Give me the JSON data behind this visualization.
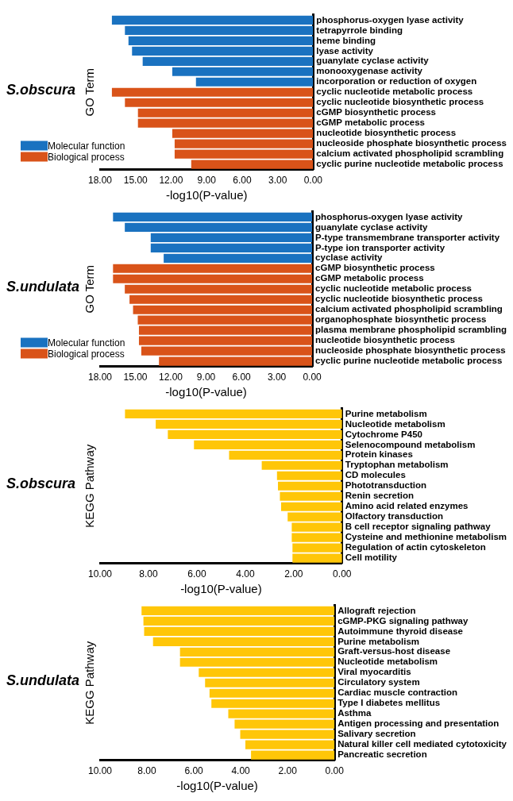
{
  "chart_data": [
    {
      "type": "bar",
      "orientation": "horizontal",
      "title": "S.obscura",
      "xlabel": "-log10(P-value)",
      "ylabel": "GO Term",
      "legend": "bottom left",
      "grid": false,
      "categories": [
        "phosphorus-oxygen lyase activity",
        "tetrapyrrole binding",
        "heme binding",
        "lyase activity",
        "guanylate cyclase activity",
        "monooxygenase activity",
        "incorporation or reduction of oxygen",
        "cyclic nucleotide metabolic process",
        "cyclic nucleotide biosynthetic process",
        "cGMP biosynthetic process",
        "cGMP metabolic process",
        "nucleotide biosynthetic process",
        "nucleoside phosphate biosynthetic process",
        "calcium activated phospholipid scrambling",
        "cyclic purine nucleotide metabolic process"
      ],
      "xlim": [
        18,
        0
      ],
      "xticks": [
        {
          "value": 18,
          "label": "18.00"
        },
        {
          "value": 15,
          "label": "15.00"
        },
        {
          "value": 12,
          "label": "12.00"
        },
        {
          "value": 9,
          "label": "9.00"
        },
        {
          "value": 6,
          "label": "6.00"
        },
        {
          "value": 3,
          "label": "3.00"
        },
        {
          "value": 0,
          "label": "0.00"
        }
      ],
      "series": [
        {
          "name": "Molecular function",
          "color": "#1a72c0",
          "values": [
            17.0,
            15.9,
            15.6,
            15.3,
            14.4,
            11.9,
            9.9,
            null,
            null,
            null,
            null,
            null,
            null,
            null,
            null
          ]
        },
        {
          "name": "Biological process",
          "color": "#d95319",
          "values": [
            null,
            null,
            null,
            null,
            null,
            null,
            null,
            17.0,
            15.9,
            14.8,
            14.8,
            11.9,
            11.7,
            11.7,
            10.3
          ]
        }
      ]
    },
    {
      "type": "bar",
      "orientation": "horizontal",
      "title": "S.undulata",
      "xlabel": "-log10(P-value)",
      "ylabel": "GO Term",
      "legend": "bottom left",
      "grid": false,
      "categories": [
        "phosphorus-oxygen lyase activity",
        "guanylate cyclase activity",
        "P-type transmembrane transporter activity",
        "P-type ion transporter activity",
        "cyclase activity",
        "cGMP biosynthetic process",
        "cGMP metabolic process",
        "cyclic nucleotide metabolic process",
        "cyclic nucleotide biosynthetic process",
        "calcium activated phospholipid scrambling",
        "organophosphate biosynthetic process",
        "plasma membrane phospholipid scrambling",
        "nucleotide biosynthetic process",
        "nucleoside phosphate biosynthetic process",
        "cyclic purine nucleotide metabolic process"
      ],
      "xlim": [
        18,
        0
      ],
      "xticks": [
        {
          "value": 18,
          "label": "18.00"
        },
        {
          "value": 15,
          "label": "15.00"
        },
        {
          "value": 12,
          "label": "12.00"
        },
        {
          "value": 9,
          "label": "9.00"
        },
        {
          "value": 6,
          "label": "6.00"
        },
        {
          "value": 3,
          "label": "3.00"
        },
        {
          "value": 0,
          "label": "0.00"
        }
      ],
      "series": [
        {
          "name": "Molecular function",
          "color": "#1a72c0",
          "values": [
            16.9,
            15.9,
            13.7,
            13.7,
            12.6,
            null,
            null,
            null,
            null,
            null,
            null,
            null,
            null,
            null,
            null
          ]
        },
        {
          "name": "Biological process",
          "color": "#d95319",
          "values": [
            null,
            null,
            null,
            null,
            null,
            16.9,
            16.9,
            15.9,
            15.5,
            15.2,
            14.8,
            14.7,
            14.7,
            14.5,
            13.0
          ]
        }
      ]
    },
    {
      "type": "bar",
      "orientation": "horizontal",
      "title": "S.obscura",
      "xlabel": "-log10(P-value)",
      "ylabel": "KEGG Pathway",
      "grid": false,
      "categories": [
        "Purine metabolism",
        "Nucleotide metabolism",
        "Cytochrome P450",
        "Selenocompound metabolism",
        "Protein kinases",
        "Tryptophan metabolism",
        "CD molecules",
        "Phototransduction",
        "Renin secretion",
        "Amino acid related enzymes",
        "Olfactory transduction",
        "B cell receptor signaling pathway",
        "Cysteine and methionine metabolism",
        "Regulation of actin cytoskeleton",
        "Cell motility"
      ],
      "xlim": [
        10,
        0
      ],
      "xticks": [
        {
          "value": 10,
          "label": "10.00"
        },
        {
          "value": 8,
          "label": "8.00"
        },
        {
          "value": 6,
          "label": "6.00"
        },
        {
          "value": 4,
          "label": "4.00"
        },
        {
          "value": 2,
          "label": "2.00"
        },
        {
          "value": 0,
          "label": "0.00"
        }
      ],
      "series": [
        {
          "color": "#ffc608",
          "values": [
            8.97,
            7.7,
            7.2,
            6.12,
            4.67,
            3.32,
            2.69,
            2.65,
            2.57,
            2.52,
            2.25,
            2.08,
            2.08,
            2.05,
            2.05
          ]
        }
      ]
    },
    {
      "type": "bar",
      "orientation": "horizontal",
      "title": "S.undulata",
      "xlabel": "-log10(P-value)",
      "ylabel": "KEGG Pathway",
      "grid": false,
      "categories": [
        "Allograft rejection",
        "cGMP-PKG signaling pathway",
        "Autoimmune thyroid disease",
        "Purine metabolism",
        "Graft-versus-host disease",
        "Nucleotide metabolism",
        "Viral myocarditis",
        "Circulatory system",
        "Cardiac muscle contraction",
        "Type I diabetes mellitus",
        "Asthma",
        "Antigen processing and presentation",
        "Salivary secretion",
        "Natural killer cell mediated cytotoxicity",
        "Pancreatic secretion"
      ],
      "xlim": [
        10,
        0
      ],
      "xticks": [
        {
          "value": 10,
          "label": "10.00"
        },
        {
          "value": 8,
          "label": "8.00"
        },
        {
          "value": 6,
          "label": "6.00"
        },
        {
          "value": 4,
          "label": "4.00"
        },
        {
          "value": 2,
          "label": "2.00"
        },
        {
          "value": 0,
          "label": "0.00"
        }
      ],
      "series": [
        {
          "color": "#ffc608",
          "values": [
            8.23,
            8.15,
            8.12,
            7.74,
            6.59,
            6.59,
            5.79,
            5.52,
            5.33,
            5.25,
            4.53,
            4.26,
            4.02,
            3.8,
            3.56
          ]
        }
      ]
    }
  ]
}
